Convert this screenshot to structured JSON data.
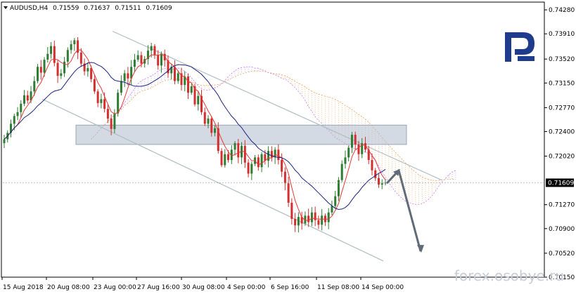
{
  "chart_data": {
    "type": "candlestick",
    "symbol_header": {
      "symbol": "AUDUSD,H4",
      "open": "0.71559",
      "high": "0.71637",
      "low": "0.71511",
      "close": "0.71609"
    },
    "y_ticks": [
      "0.74280",
      "0.73910",
      "0.73520",
      "0.73150",
      "0.72770",
      "0.72400",
      "0.72020",
      "0.71609",
      "0.71270",
      "0.70900",
      "0.70520",
      "0.70150"
    ],
    "ylim": [
      0.7015,
      0.744
    ],
    "x_ticks": [
      "15 Aug 2018",
      "20 Aug 08:00",
      "23 Aug 00:00",
      "27 Aug 16:00",
      "30 Aug 08:00",
      "4 Sep 00:00",
      "6 Sep 16:00",
      "11 Sep 08:00",
      "14 Sep 00:00"
    ],
    "last_price": "0.71609",
    "watermark": "forex.osobye.ru",
    "colors": {
      "bull": "#2e7d32",
      "bear": "#d32f2f",
      "fast_ma": "#e53935",
      "slow_ma": "#1a237e",
      "cloud_a": "#c77dff",
      "cloud_b": "#f4a460",
      "channel": "#b0bec5",
      "zone": "#b0bccc",
      "arrow": "#5f6b78",
      "logo": "#1f3b8c"
    },
    "closes": [
      0.7228,
      0.7238,
      0.7252,
      0.7264,
      0.727,
      0.7283,
      0.7296,
      0.7288,
      0.7302,
      0.7318,
      0.734,
      0.7331,
      0.7351,
      0.736,
      0.7372,
      0.7346,
      0.7326,
      0.733,
      0.7348,
      0.7366,
      0.7375,
      0.7381,
      0.7362,
      0.7345,
      0.7333,
      0.7338,
      0.7321,
      0.7302,
      0.7284,
      0.729,
      0.7275,
      0.726,
      0.7244,
      0.7268,
      0.73,
      0.7318,
      0.733,
      0.7322,
      0.734,
      0.7351,
      0.7358,
      0.7345,
      0.7352,
      0.7365,
      0.7372,
      0.7358,
      0.7342,
      0.736,
      0.735,
      0.733,
      0.734,
      0.7318,
      0.733,
      0.7312,
      0.7325,
      0.73,
      0.731,
      0.7282,
      0.7295,
      0.727,
      0.7252,
      0.726,
      0.7238,
      0.7245,
      0.721,
      0.7188,
      0.7205,
      0.7196,
      0.7212,
      0.7222,
      0.72,
      0.7218,
      0.7192,
      0.7175,
      0.719,
      0.72,
      0.7185,
      0.7205,
      0.7195,
      0.721,
      0.72,
      0.7212,
      0.7196,
      0.7178,
      0.716,
      0.713,
      0.7105,
      0.7095,
      0.7108,
      0.7098,
      0.711,
      0.71,
      0.7115,
      0.7103,
      0.7096,
      0.711,
      0.71,
      0.7115,
      0.7125,
      0.714,
      0.7165,
      0.719,
      0.72,
      0.7215,
      0.7235,
      0.722,
      0.7205,
      0.7222,
      0.7212,
      0.7196,
      0.718,
      0.7168,
      0.7158,
      0.716,
      0.7161
    ]
  }
}
